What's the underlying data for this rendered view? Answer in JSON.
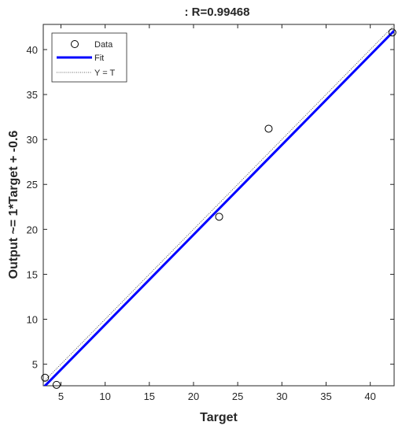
{
  "chart_data": {
    "type": "scatter",
    "title": ": R=0.99468",
    "xlabel": "Target",
    "ylabel": "Output ~= 1*Target + -0.6",
    "xlim": [
      3,
      42.7
    ],
    "ylim": [
      2.6,
      42.8
    ],
    "xticks": [
      5,
      10,
      15,
      20,
      25,
      30,
      35,
      40
    ],
    "yticks": [
      5,
      10,
      15,
      20,
      25,
      30,
      35,
      40
    ],
    "grid": false,
    "legend_position": "top-left",
    "series": [
      {
        "name": "Data",
        "kind": "markers",
        "marker": "circle",
        "color": "#000000",
        "x": [
          3.2,
          4.5,
          22.9,
          28.5,
          42.5
        ],
        "y": [
          3.5,
          2.7,
          21.4,
          31.2,
          41.9
        ]
      },
      {
        "name": "Fit",
        "kind": "line",
        "color": "#0000ff",
        "slope": 1,
        "intercept": -0.6
      },
      {
        "name": "Y = T",
        "kind": "dotted-line",
        "color": "#333333",
        "slope": 1,
        "intercept": 0
      }
    ]
  }
}
